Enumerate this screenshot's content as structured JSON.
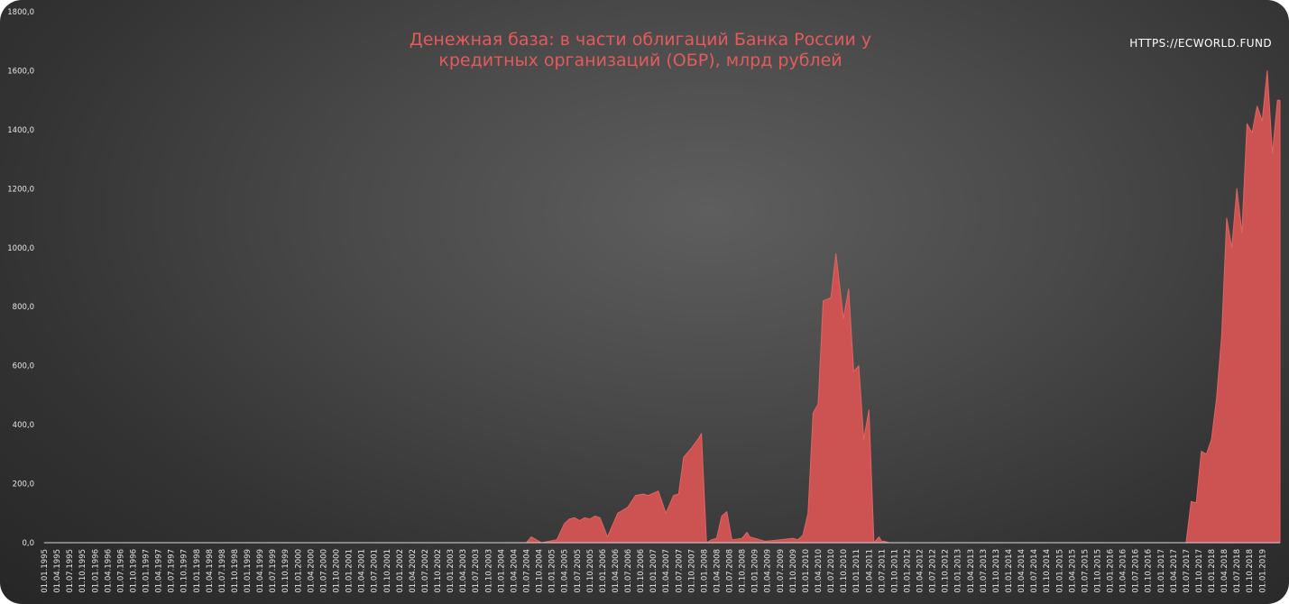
{
  "chart_data": {
    "type": "area",
    "title": "Денежная база: в части облигаций Банка России у кредитных организаций (ОБР), млрд рублей",
    "xlabel": "",
    "ylabel": "",
    "ylim": [
      0,
      1800
    ],
    "yticks": [
      "0,0",
      "200,0",
      "400,0",
      "600,0",
      "800,0",
      "1000,0",
      "1200,0",
      "1400,0",
      "1600,0",
      "1800,0"
    ],
    "grid": false,
    "legend": "none",
    "color": "#cd5353",
    "x_start": "01.01.1995",
    "x_end": "01.01.2019",
    "x_tick_labels": [
      "01.01.1995",
      "01.04.1995",
      "01.07.1995",
      "01.10.1995",
      "01.01.1996",
      "01.04.1996",
      "01.07.1996",
      "01.10.1996",
      "01.01.1997",
      "01.04.1997",
      "01.07.1997",
      "01.10.1997",
      "01.01.1998",
      "01.04.1998",
      "01.07.1998",
      "01.10.1998",
      "01.01.1999",
      "01.04.1999",
      "01.07.1999",
      "01.10.1999",
      "01.01.2000",
      "01.04.2000",
      "01.07.2000",
      "01.10.2000",
      "01.01.2001",
      "01.04.2001",
      "01.07.2001",
      "01.10.2001",
      "01.01.2002",
      "01.04.2002",
      "01.07.2002",
      "01.10.2002",
      "01.01.2003",
      "01.04.2003",
      "01.07.2003",
      "01.10.2003",
      "01.01.2004",
      "01.04.2004",
      "01.07.2004",
      "01.10.2004",
      "01.01.2005",
      "01.04.2005",
      "01.07.2005",
      "01.10.2005",
      "01.01.2006",
      "01.04.2006",
      "01.07.2006",
      "01.10.2006",
      "01.01.2007",
      "01.04.2007",
      "01.07.2007",
      "01.10.2007",
      "01.01.2008",
      "01.04.2008",
      "01.07.2008",
      "01.10.2008",
      "01.01.2009",
      "01.04.2009",
      "01.07.2009",
      "01.10.2009",
      "01.01.2010",
      "01.04.2010",
      "01.07.2010",
      "01.10.2010",
      "01.01.2011",
      "01.04.2011",
      "01.07.2011",
      "01.10.2011",
      "01.01.2012",
      "01.04.2012",
      "01.07.2012",
      "01.10.2012",
      "01.01.2013",
      "01.04.2013",
      "01.07.2013",
      "01.10.2013",
      "01.01.2014",
      "01.04.2014",
      "01.07.2014",
      "01.10.2014",
      "01.01.2015",
      "01.04.2015",
      "01.07.2015",
      "01.10.2015",
      "01.01.2016",
      "01.04.2016",
      "01.07.2016",
      "01.10.2016",
      "01.01.2017",
      "01.04.2017",
      "01.07.2017",
      "01.10.2017",
      "01.01.2018",
      "01.04.2018",
      "01.07.2018",
      "01.10.2018",
      "01.01.2019"
    ],
    "x": [
      1995.0,
      2004.5,
      2004.6,
      2004.8,
      2004.95,
      2005.1,
      2005.25,
      2005.35,
      2005.45,
      2005.55,
      2005.65,
      2005.75,
      2005.85,
      2005.95,
      2006.1,
      2006.3,
      2006.5,
      2006.65,
      2006.8,
      2006.9,
      2007.1,
      2007.25,
      2007.4,
      2007.5,
      2007.6,
      2007.75,
      2007.9,
      2007.95,
      2008.05,
      2008.15,
      2008.25,
      2008.35,
      2008.45,
      2008.55,
      2008.65,
      2008.75,
      2008.85,
      2008.9,
      2009.0,
      2009.2,
      2009.4,
      2009.6,
      2009.75,
      2009.85,
      2009.95,
      2010.05,
      2010.15,
      2010.25,
      2010.35,
      2010.5,
      2010.6,
      2010.75,
      2010.85,
      2010.95,
      2011.05,
      2011.15,
      2011.25,
      2011.35,
      2011.45,
      2011.5,
      2011.55,
      2011.65,
      2011.75,
      2011.8,
      2017.5,
      2017.6,
      2017.7,
      2017.8,
      2017.9,
      2018.0,
      2018.1,
      2018.2,
      2018.3,
      2018.4,
      2018.5,
      2018.6,
      2018.7,
      2018.8,
      2018.9,
      2019.0,
      2019.1,
      2019.2,
      2019.3,
      2019.35
    ],
    "values": [
      0,
      0,
      20,
      0,
      5,
      10,
      65,
      80,
      85,
      75,
      85,
      80,
      90,
      85,
      20,
      100,
      120,
      160,
      165,
      160,
      175,
      100,
      160,
      165,
      290,
      320,
      355,
      370,
      0,
      10,
      15,
      90,
      105,
      10,
      12,
      15,
      35,
      20,
      15,
      5,
      8,
      12,
      15,
      10,
      25,
      100,
      440,
      470,
      820,
      830,
      980,
      760,
      860,
      580,
      600,
      350,
      450,
      0,
      20,
      5,
      5,
      0,
      0,
      0,
      0,
      140,
      135,
      310,
      300,
      350,
      490,
      700,
      1100,
      1000,
      1200,
      1050,
      1420,
      1390,
      1480,
      1430,
      1600,
      1320,
      1500,
      1500
    ]
  },
  "watermark": "HTTPS://ECWORLD.FUND"
}
